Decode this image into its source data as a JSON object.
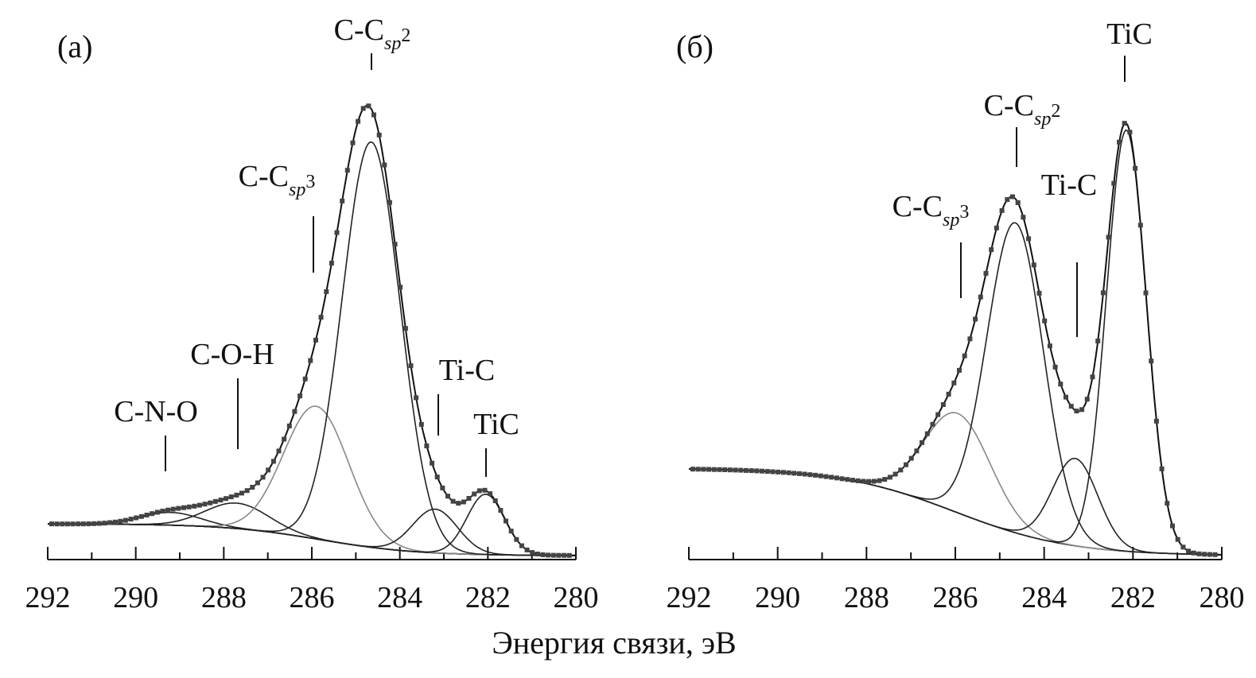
{
  "figure": {
    "xlabel": "Энергия связи, эВ"
  },
  "chart_data": [
    {
      "type": "line",
      "panel_label": "(а)",
      "xlabel": "Энергия связи, эВ",
      "xlim": [
        292,
        280
      ],
      "x_reversed": true,
      "x_ticks": [
        292,
        290,
        288,
        286,
        284,
        282,
        280
      ],
      "grid": false,
      "baseline": {
        "amp": 40,
        "center": 285.8,
        "width": 1.1
      },
      "offset": 5,
      "components": [
        {
          "name": "C-N-O",
          "label": "C-N-O",
          "center": 289.2,
          "amp": 16,
          "fwhm": 1.6,
          "style": "dark",
          "label_base": "C-N-O",
          "label_sub": "",
          "label_sup": ""
        },
        {
          "name": "C-O-H",
          "label": "C-O-H",
          "center": 287.7,
          "amp": 32,
          "fwhm": 1.7,
          "style": "dark",
          "label_base": "C-O-H",
          "label_sub": "",
          "label_sup": ""
        },
        {
          "name": "C-Csp3",
          "label": "C-Csp3",
          "center": 285.9,
          "amp": 167,
          "fwhm": 1.75,
          "style": "light",
          "label_base": "C-C",
          "label_sub": "sp",
          "label_sup": "3"
        },
        {
          "name": "C-Csp2",
          "label": "C-Csp2",
          "center": 284.65,
          "amp": 510,
          "fwhm": 1.55,
          "style": "dark",
          "label_base": "C-C",
          "label_sub": "sp",
          "label_sup": "2"
        },
        {
          "name": "Ti-C",
          "label": "Ti-C",
          "center": 283.2,
          "amp": 55,
          "fwhm": 1.2,
          "style": "dark",
          "label_base": "Ti-C",
          "label_sub": "",
          "label_sup": ""
        },
        {
          "name": "TiC",
          "label": "TiC",
          "center": 282.05,
          "amp": 76,
          "fwhm": 1.0,
          "style": "dark",
          "label_base": "TiC",
          "label_sub": "",
          "label_sup": ""
        }
      ],
      "y_note": "relative intensity, arbitrary units (no y axis shown)"
    },
    {
      "type": "line",
      "panel_label": "(б)",
      "xlabel": "Энергия связи, эВ",
      "xlim": [
        292,
        280
      ],
      "x_reversed": true,
      "x_ticks": [
        292,
        290,
        288,
        286,
        284,
        282,
        280
      ],
      "grid": false,
      "baseline": {
        "amp": 110,
        "center": 286.0,
        "width": 1.3
      },
      "offset": 5,
      "components": [
        {
          "name": "C-Csp3",
          "label": "C-Csp3",
          "center": 285.95,
          "amp": 125,
          "fwhm": 1.75,
          "style": "light",
          "label_base": "C-C",
          "label_sub": "sp",
          "label_sup": "3"
        },
        {
          "name": "C-Csp2",
          "label": "C-Csp2",
          "center": 284.65,
          "amp": 390,
          "fwhm": 1.5,
          "style": "dark",
          "label_base": "C-C",
          "label_sub": "sp",
          "label_sup": "2"
        },
        {
          "name": "Ti-C",
          "label": "Ti-C",
          "center": 283.3,
          "amp": 110,
          "fwhm": 1.2,
          "style": "dark",
          "label_base": "Ti-C",
          "label_sub": "",
          "label_sup": ""
        },
        {
          "name": "TiC",
          "label": "TiC",
          "center": 282.15,
          "amp": 530,
          "fwhm": 1.05,
          "style": "dark",
          "label_base": "TiC",
          "label_sub": "",
          "label_sup": ""
        }
      ],
      "y_note": "relative intensity, arbitrary units (no y axis shown)"
    }
  ]
}
